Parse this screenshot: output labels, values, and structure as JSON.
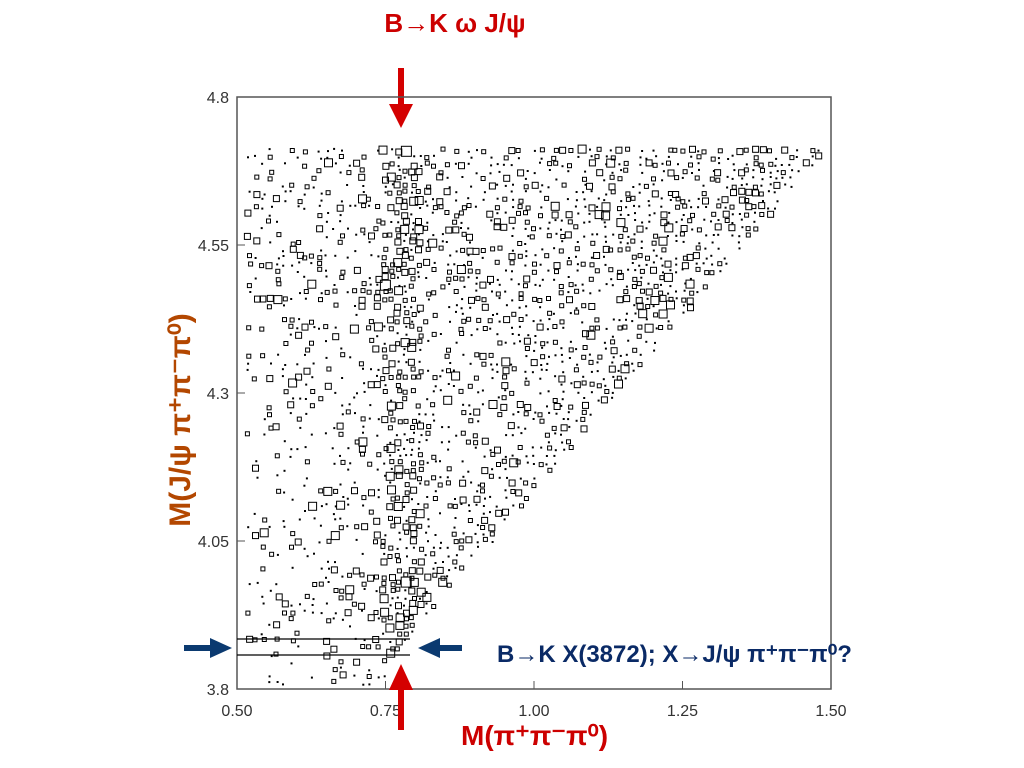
{
  "chart_data": {
    "type": "scatter",
    "title": "B→K ω J/ψ",
    "xlabel": "M(π⁺π⁻π⁰)",
    "ylabel": "M(J/ψ π⁺π⁻π⁰)",
    "xlim": [
      0.5,
      1.5
    ],
    "ylim": [
      3.8,
      4.8
    ],
    "x_ticks": [
      "0.50",
      "0.75",
      "1.00",
      "1.25",
      "1.50"
    ],
    "y_ticks": [
      "3.8",
      "4.05",
      "4.3",
      "4.55",
      "4.8"
    ],
    "grid": false,
    "description_marks": "box plot of event density, populated region bounded above-right by kinematic edge from (0.53, 4.72) to (1.50, 4.72) and diagonal down to (0.75, 3.84)",
    "band": {
      "ylow": 3.855,
      "yhigh": 3.885,
      "label": "B→K X(3872);  X→J/ψ π⁺π⁻π⁰?"
    },
    "omega_mass": 0.78,
    "annotations": {
      "top_arrow_label": "B→K ω J/ψ",
      "band_label": "B→K X(3872);  X→J/ψ π⁺π⁻π⁰?"
    },
    "colors": {
      "red_arrow": "#d40000",
      "blue_arrow": "#0b3a70",
      "ylabel": "#b34700",
      "box": "#000000"
    }
  }
}
